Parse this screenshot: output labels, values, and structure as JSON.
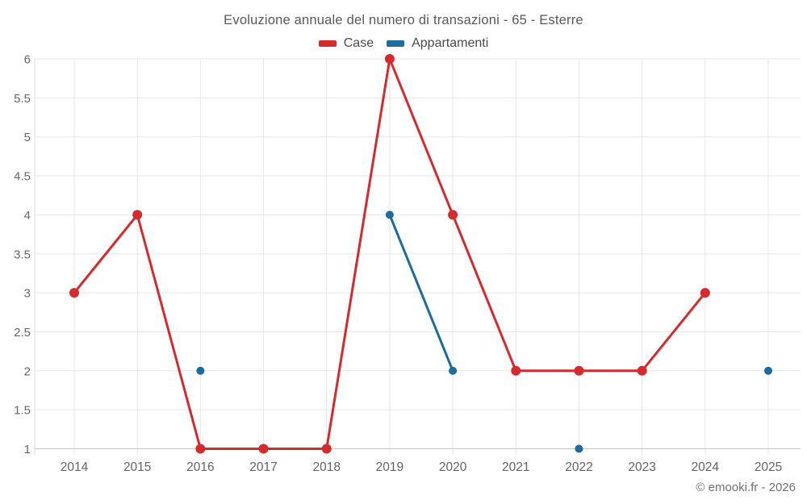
{
  "page": {
    "footer": "© emooki.fr - 2026"
  },
  "chart_data": {
    "type": "line",
    "title": "Evoluzione annuale del numero di transazioni - 65 - Esterre",
    "categories": [
      "2014",
      "2015",
      "2016",
      "2017",
      "2018",
      "2019",
      "2020",
      "2021",
      "2022",
      "2023",
      "2024",
      "2025"
    ],
    "series": [
      {
        "name": "Case",
        "color": "#d62a2d",
        "values": [
          3,
          4,
          1,
          1,
          1,
          6,
          4,
          2,
          2,
          2,
          3,
          null
        ]
      },
      {
        "name": "Appartamenti",
        "color": "#1b6ca0",
        "values": [
          null,
          null,
          2,
          null,
          null,
          4,
          2,
          null,
          1,
          null,
          null,
          2
        ]
      }
    ],
    "ylim": [
      1,
      6
    ],
    "y_ticks": [
      6,
      5.5,
      5,
      4.5,
      4,
      3.5,
      3,
      2.5,
      2,
      1.5,
      1
    ],
    "grid": true,
    "legend_position": "top",
    "connect_rule": "only adjacent non-null years are joined by line segments; isolated values are dots"
  }
}
